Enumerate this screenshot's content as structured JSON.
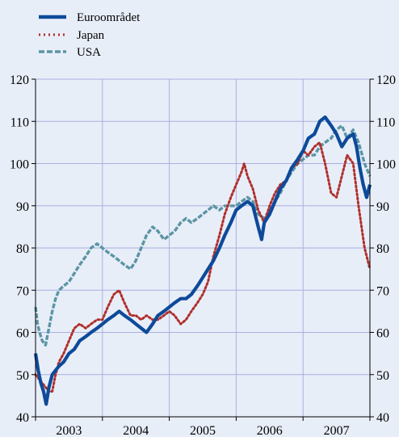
{
  "colors": {
    "background": "#e8eef8",
    "grid": "#a9afe0",
    "euro": "#0d4a9a",
    "japan": "#b0302c",
    "usa": "#5b95a4"
  },
  "chart_data": {
    "type": "line",
    "title": "",
    "xlabel": "",
    "ylabel": "",
    "ylim": [
      40,
      120
    ],
    "y_ticks": [
      40,
      50,
      60,
      70,
      80,
      90,
      100,
      110,
      120
    ],
    "x_categories": [
      "2003",
      "2004",
      "2005",
      "2006",
      "2007"
    ],
    "grid": true,
    "legend_position": "top-left",
    "series": [
      {
        "name": "Euroområdet",
        "style": "solid",
        "color": "#0d4a9a",
        "points": [
          [
            2003.0,
            55
          ],
          [
            2003.04,
            51
          ],
          [
            2003.08,
            48
          ],
          [
            2003.12,
            46
          ],
          [
            2003.16,
            43
          ],
          [
            2003.2,
            47
          ],
          [
            2003.25,
            50
          ],
          [
            2003.3,
            51
          ],
          [
            2003.35,
            52
          ],
          [
            2003.42,
            53
          ],
          [
            2003.5,
            55
          ],
          [
            2003.58,
            56
          ],
          [
            2003.66,
            58
          ],
          [
            2003.75,
            59
          ],
          [
            2003.83,
            60
          ],
          [
            2003.92,
            61
          ],
          [
            2004.0,
            62
          ],
          [
            2004.08,
            63
          ],
          [
            2004.17,
            64
          ],
          [
            2004.25,
            65
          ],
          [
            2004.33,
            64
          ],
          [
            2004.42,
            63
          ],
          [
            2004.5,
            62
          ],
          [
            2004.58,
            61
          ],
          [
            2004.66,
            60
          ],
          [
            2004.75,
            62
          ],
          [
            2004.83,
            64
          ],
          [
            2004.92,
            65
          ],
          [
            2005.0,
            66
          ],
          [
            2005.08,
            67
          ],
          [
            2005.17,
            68
          ],
          [
            2005.25,
            68
          ],
          [
            2005.33,
            69
          ],
          [
            2005.42,
            71
          ],
          [
            2005.5,
            73
          ],
          [
            2005.58,
            75
          ],
          [
            2005.66,
            77
          ],
          [
            2005.75,
            80
          ],
          [
            2005.83,
            83
          ],
          [
            2005.92,
            86
          ],
          [
            2006.0,
            89
          ],
          [
            2006.08,
            90
          ],
          [
            2006.17,
            91
          ],
          [
            2006.25,
            90
          ],
          [
            2006.33,
            85
          ],
          [
            2006.38,
            82
          ],
          [
            2006.42,
            86
          ],
          [
            2006.5,
            88
          ],
          [
            2006.58,
            91
          ],
          [
            2006.66,
            94
          ],
          [
            2006.75,
            96
          ],
          [
            2006.83,
            99
          ],
          [
            2006.92,
            101
          ],
          [
            2007.0,
            103
          ],
          [
            2007.08,
            106
          ],
          [
            2007.17,
            107
          ],
          [
            2007.25,
            110
          ],
          [
            2007.33,
            111
          ],
          [
            2007.42,
            109
          ],
          [
            2007.5,
            107
          ],
          [
            2007.58,
            104
          ],
          [
            2007.66,
            106
          ],
          [
            2007.75,
            107
          ],
          [
            2007.8,
            104
          ],
          [
            2007.85,
            99
          ],
          [
            2007.9,
            95
          ],
          [
            2007.95,
            92
          ],
          [
            2008.0,
            95
          ]
        ]
      },
      {
        "name": "Japan",
        "style": "dotted",
        "color": "#b0302c",
        "points": [
          [
            2003.0,
            50
          ],
          [
            2003.05,
            49
          ],
          [
            2003.1,
            48
          ],
          [
            2003.15,
            47
          ],
          [
            2003.2,
            46
          ],
          [
            2003.25,
            46
          ],
          [
            2003.3,
            50
          ],
          [
            2003.35,
            53
          ],
          [
            2003.42,
            55
          ],
          [
            2003.5,
            58
          ],
          [
            2003.58,
            61
          ],
          [
            2003.66,
            62
          ],
          [
            2003.75,
            61
          ],
          [
            2003.83,
            62
          ],
          [
            2003.92,
            63
          ],
          [
            2004.0,
            63
          ],
          [
            2004.08,
            66
          ],
          [
            2004.17,
            69
          ],
          [
            2004.25,
            70
          ],
          [
            2004.33,
            67
          ],
          [
            2004.42,
            64
          ],
          [
            2004.5,
            64
          ],
          [
            2004.58,
            63
          ],
          [
            2004.66,
            64
          ],
          [
            2004.75,
            63
          ],
          [
            2004.83,
            63
          ],
          [
            2004.92,
            64
          ],
          [
            2005.0,
            65
          ],
          [
            2005.08,
            64
          ],
          [
            2005.17,
            62
          ],
          [
            2005.25,
            63
          ],
          [
            2005.33,
            65
          ],
          [
            2005.42,
            67
          ],
          [
            2005.5,
            69
          ],
          [
            2005.58,
            72
          ],
          [
            2005.66,
            78
          ],
          [
            2005.75,
            83
          ],
          [
            2005.83,
            88
          ],
          [
            2005.92,
            92
          ],
          [
            2006.0,
            95
          ],
          [
            2006.08,
            98
          ],
          [
            2006.12,
            100
          ],
          [
            2006.17,
            97
          ],
          [
            2006.25,
            94
          ],
          [
            2006.33,
            89
          ],
          [
            2006.42,
            86
          ],
          [
            2006.5,
            90
          ],
          [
            2006.58,
            93
          ],
          [
            2006.66,
            95
          ],
          [
            2006.75,
            96
          ],
          [
            2006.83,
            99
          ],
          [
            2006.92,
            100
          ],
          [
            2007.0,
            103
          ],
          [
            2007.08,
            102
          ],
          [
            2007.17,
            104
          ],
          [
            2007.25,
            105
          ],
          [
            2007.33,
            100
          ],
          [
            2007.42,
            93
          ],
          [
            2007.5,
            92
          ],
          [
            2007.58,
            97
          ],
          [
            2007.66,
            102
          ],
          [
            2007.75,
            100
          ],
          [
            2007.83,
            90
          ],
          [
            2007.92,
            80
          ],
          [
            2008.0,
            75
          ]
        ]
      },
      {
        "name": "USA",
        "style": "dashed",
        "color": "#5b95a4",
        "points": [
          [
            2003.0,
            66
          ],
          [
            2003.03,
            62
          ],
          [
            2003.06,
            60
          ],
          [
            2003.1,
            58
          ],
          [
            2003.15,
            57
          ],
          [
            2003.2,
            61
          ],
          [
            2003.25,
            65
          ],
          [
            2003.3,
            68
          ],
          [
            2003.35,
            70
          ],
          [
            2003.42,
            71
          ],
          [
            2003.5,
            72
          ],
          [
            2003.58,
            74
          ],
          [
            2003.66,
            76
          ],
          [
            2003.75,
            78
          ],
          [
            2003.83,
            80
          ],
          [
            2003.92,
            81
          ],
          [
            2004.0,
            80
          ],
          [
            2004.08,
            79
          ],
          [
            2004.17,
            78
          ],
          [
            2004.25,
            77
          ],
          [
            2004.33,
            76
          ],
          [
            2004.42,
            75
          ],
          [
            2004.5,
            77
          ],
          [
            2004.58,
            80
          ],
          [
            2004.66,
            83
          ],
          [
            2004.75,
            85
          ],
          [
            2004.83,
            84
          ],
          [
            2004.92,
            82
          ],
          [
            2005.0,
            83
          ],
          [
            2005.08,
            84
          ],
          [
            2005.17,
            86
          ],
          [
            2005.25,
            87
          ],
          [
            2005.33,
            86
          ],
          [
            2005.42,
            87
          ],
          [
            2005.5,
            88
          ],
          [
            2005.58,
            89
          ],
          [
            2005.66,
            90
          ],
          [
            2005.75,
            89
          ],
          [
            2005.83,
            90
          ],
          [
            2005.92,
            90
          ],
          [
            2006.0,
            90
          ],
          [
            2006.08,
            91
          ],
          [
            2006.17,
            92
          ],
          [
            2006.25,
            91
          ],
          [
            2006.33,
            88
          ],
          [
            2006.42,
            87
          ],
          [
            2006.5,
            89
          ],
          [
            2006.58,
            91
          ],
          [
            2006.66,
            93
          ],
          [
            2006.75,
            96
          ],
          [
            2006.83,
            98
          ],
          [
            2006.92,
            100
          ],
          [
            2007.0,
            101
          ],
          [
            2007.08,
            102
          ],
          [
            2007.17,
            102
          ],
          [
            2007.25,
            104
          ],
          [
            2007.33,
            105
          ],
          [
            2007.42,
            106
          ],
          [
            2007.5,
            108
          ],
          [
            2007.58,
            109
          ],
          [
            2007.66,
            106
          ],
          [
            2007.75,
            108
          ],
          [
            2007.83,
            105
          ],
          [
            2007.92,
            100
          ],
          [
            2008.0,
            97
          ]
        ]
      }
    ]
  }
}
